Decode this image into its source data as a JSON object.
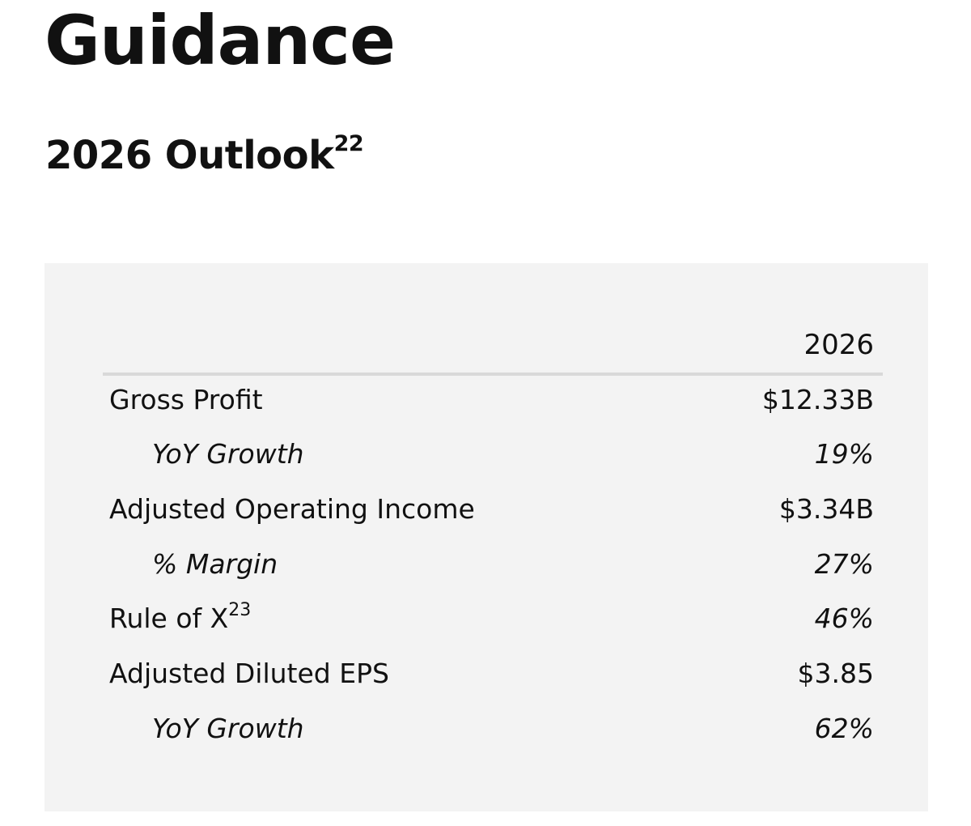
{
  "page_title": "Guidance",
  "section": {
    "title": "2026 Outlook",
    "footnote": "22"
  },
  "table": {
    "column_header": "2026",
    "rows": [
      {
        "label": "Gross Profit",
        "value": "$12.33B"
      },
      {
        "label": "YoY Growth",
        "value": "19%"
      },
      {
        "label": "Adjusted Operating Income",
        "value": "$3.34B"
      },
      {
        "label": "% Margin",
        "value": "27%"
      },
      {
        "label": "Rule of X",
        "footnote": "23",
        "value": "46%"
      },
      {
        "label": "Adjusted Diluted EPS",
        "value": "$3.85"
      },
      {
        "label": "YoY Growth",
        "value": "62%"
      }
    ]
  }
}
